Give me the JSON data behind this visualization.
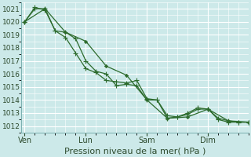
{
  "xlabel": "Pression niveau de la mer( hPa )",
  "bg_color": "#cce9e9",
  "grid_color": "#ffffff",
  "grid_minor_color": "#ddf0f0",
  "line_color": "#2d6b2d",
  "ylim": [
    1011.5,
    1021.5
  ],
  "yticks": [
    1012,
    1013,
    1014,
    1015,
    1016,
    1017,
    1018,
    1019,
    1020,
    1021
  ],
  "xtick_labels": [
    "Ven",
    "Lun",
    "Sam",
    "Dim"
  ],
  "xtick_positions": [
    0,
    36,
    72,
    108
  ],
  "vline_positions": [
    0,
    36,
    72,
    108
  ],
  "xlim": [
    -2,
    132
  ],
  "line1_x": [
    0,
    6,
    12,
    18,
    24,
    30,
    36,
    42,
    48,
    54,
    60,
    66,
    72,
    78,
    84,
    90,
    96,
    102,
    108,
    114,
    120,
    126,
    132
  ],
  "line1_y": [
    1020.0,
    1021.0,
    1021.0,
    1019.3,
    1019.2,
    1018.7,
    1017.0,
    1016.2,
    1016.0,
    1015.1,
    1015.2,
    1015.1,
    1014.0,
    1014.0,
    1012.6,
    1012.7,
    1013.0,
    1013.4,
    1013.3,
    1012.5,
    1012.3,
    1012.3,
    1012.3
  ],
  "line2_x": [
    0,
    6,
    12,
    18,
    24,
    30,
    36,
    42,
    48,
    54,
    60,
    66,
    72,
    78,
    84,
    90,
    96,
    102,
    108,
    114,
    120,
    126,
    132
  ],
  "line2_y": [
    1020.0,
    1021.1,
    1020.9,
    1019.3,
    1018.8,
    1017.6,
    1016.4,
    1016.1,
    1015.5,
    1015.4,
    1015.3,
    1015.5,
    1014.1,
    1014.0,
    1012.8,
    1012.7,
    1012.9,
    1013.3,
    1013.3,
    1012.6,
    1012.4,
    1012.3,
    1012.3
  ],
  "line3_x": [
    0,
    12,
    24,
    36,
    48,
    60,
    72,
    84,
    96,
    108,
    120,
    132
  ],
  "line3_y": [
    1020.0,
    1021.0,
    1019.2,
    1018.5,
    1016.6,
    1015.9,
    1014.0,
    1012.6,
    1012.7,
    1013.3,
    1012.4,
    1012.3
  ],
  "marker_size": 2.2,
  "xlabel_fontsize": 8,
  "ytick_fontsize": 6.5,
  "xtick_fontsize": 7
}
